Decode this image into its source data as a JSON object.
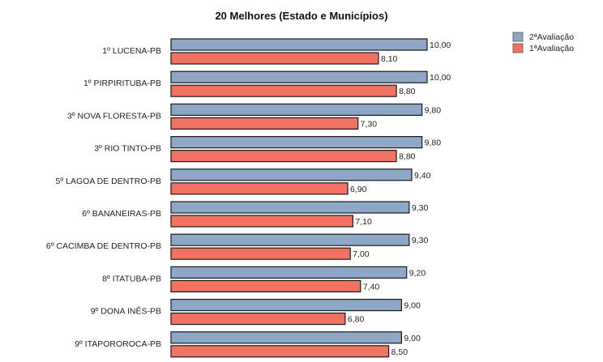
{
  "chart_data": {
    "type": "bar",
    "orientation": "horizontal",
    "title": "20 Melhores (Estado e Municípios)",
    "categories": [
      "1º LUCENA-PB",
      "1º PIRPIRITUBA-PB",
      "3º NOVA FLORESTA-PB",
      "3º RIO TINTO-PB",
      "5º LAGOA DE DENTRO-PB",
      "6º BANANEIRAS-PB",
      "6º CACIMBA DE DENTRO-PB",
      "8º ITATUBA-PB",
      "9º DONA INÊS-PB",
      "9º ITAPOROROCA-PB"
    ],
    "series": [
      {
        "name": "2ªAvaliação",
        "color": "#8fa7c7",
        "values": [
          10.0,
          10.0,
          9.8,
          9.8,
          9.4,
          9.3,
          9.3,
          9.2,
          9.0,
          9.0
        ],
        "labels": [
          "10,00",
          "10,00",
          "9,80",
          "9,80",
          "9,40",
          "9,30",
          "9,30",
          "9,20",
          "9,00",
          "9,00"
        ]
      },
      {
        "name": "1ªAvaliação",
        "color": "#f07262",
        "values": [
          8.1,
          8.8,
          7.3,
          8.8,
          6.9,
          7.1,
          7.0,
          7.4,
          6.8,
          8.5
        ],
        "labels": [
          "8,10",
          "8,80",
          "7,30",
          "8,80",
          "6,90",
          "7,10",
          "7,00",
          "7,40",
          "6,80",
          "8,50"
        ]
      }
    ],
    "xlim": [
      0,
      10
    ],
    "legend_position": "top-right",
    "grid": false
  }
}
